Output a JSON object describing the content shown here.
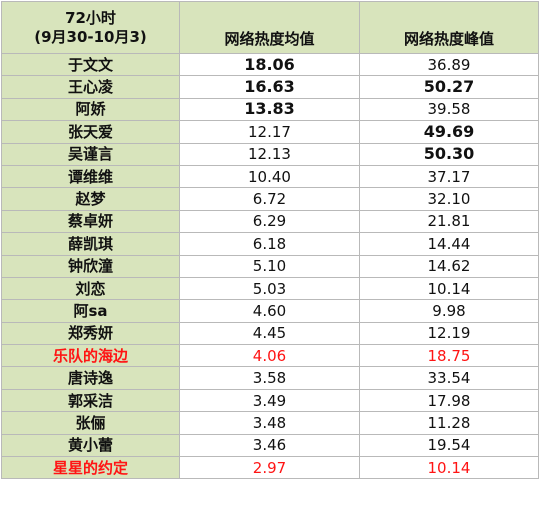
{
  "header": {
    "period_line1": "72小时",
    "period_line2": "(9月30-10月3)",
    "col_avg": "网络热度均值",
    "col_peak": "网络热度峰值"
  },
  "colors": {
    "header_fill": "#d8e4bc",
    "name_fill": "#d8e4bc",
    "grid_line": "#b9b9b9",
    "text": "#111111",
    "highlight_text": "#ff1414"
  },
  "rows": [
    {
      "name": "于文文",
      "avg": "18.06",
      "peak": "36.89",
      "avg_bold": true,
      "peak_bold": false,
      "highlight": false
    },
    {
      "name": "王心凌",
      "avg": "16.63",
      "peak": "50.27",
      "avg_bold": true,
      "peak_bold": true,
      "highlight": false
    },
    {
      "name": "阿娇",
      "avg": "13.83",
      "peak": "39.58",
      "avg_bold": true,
      "peak_bold": false,
      "highlight": false
    },
    {
      "name": "张天爱",
      "avg": "12.17",
      "peak": "49.69",
      "avg_bold": false,
      "peak_bold": true,
      "highlight": false
    },
    {
      "name": "吴谨言",
      "avg": "12.13",
      "peak": "50.30",
      "avg_bold": false,
      "peak_bold": true,
      "highlight": false
    },
    {
      "name": "谭维维",
      "avg": "10.40",
      "peak": "37.17",
      "avg_bold": false,
      "peak_bold": false,
      "highlight": false
    },
    {
      "name": "赵梦",
      "avg": "6.72",
      "peak": "32.10",
      "avg_bold": false,
      "peak_bold": false,
      "highlight": false
    },
    {
      "name": "蔡卓妍",
      "avg": "6.29",
      "peak": "21.81",
      "avg_bold": false,
      "peak_bold": false,
      "highlight": false
    },
    {
      "name": "薛凯琪",
      "avg": "6.18",
      "peak": "14.44",
      "avg_bold": false,
      "peak_bold": false,
      "highlight": false
    },
    {
      "name": "钟欣潼",
      "avg": "5.10",
      "peak": "14.62",
      "avg_bold": false,
      "peak_bold": false,
      "highlight": false
    },
    {
      "name": "刘恋",
      "avg": "5.03",
      "peak": "10.14",
      "avg_bold": false,
      "peak_bold": false,
      "highlight": false
    },
    {
      "name": "阿sa",
      "avg": "4.60",
      "peak": "9.98",
      "avg_bold": false,
      "peak_bold": false,
      "highlight": false
    },
    {
      "name": "郑秀妍",
      "avg": "4.45",
      "peak": "12.19",
      "avg_bold": false,
      "peak_bold": false,
      "highlight": false
    },
    {
      "name": "乐队的海边",
      "avg": "4.06",
      "peak": "18.75",
      "avg_bold": false,
      "peak_bold": false,
      "highlight": true
    },
    {
      "name": "唐诗逸",
      "avg": "3.58",
      "peak": "33.54",
      "avg_bold": false,
      "peak_bold": false,
      "highlight": false
    },
    {
      "name": "郭采洁",
      "avg": "3.49",
      "peak": "17.98",
      "avg_bold": false,
      "peak_bold": false,
      "highlight": false
    },
    {
      "name": "张俪",
      "avg": "3.48",
      "peak": "11.28",
      "avg_bold": false,
      "peak_bold": false,
      "highlight": false
    },
    {
      "name": "黄小蕾",
      "avg": "3.46",
      "peak": "19.54",
      "avg_bold": false,
      "peak_bold": false,
      "highlight": false
    },
    {
      "name": "星星的约定",
      "avg": "2.97",
      "peak": "10.14",
      "avg_bold": false,
      "peak_bold": false,
      "highlight": true
    }
  ]
}
